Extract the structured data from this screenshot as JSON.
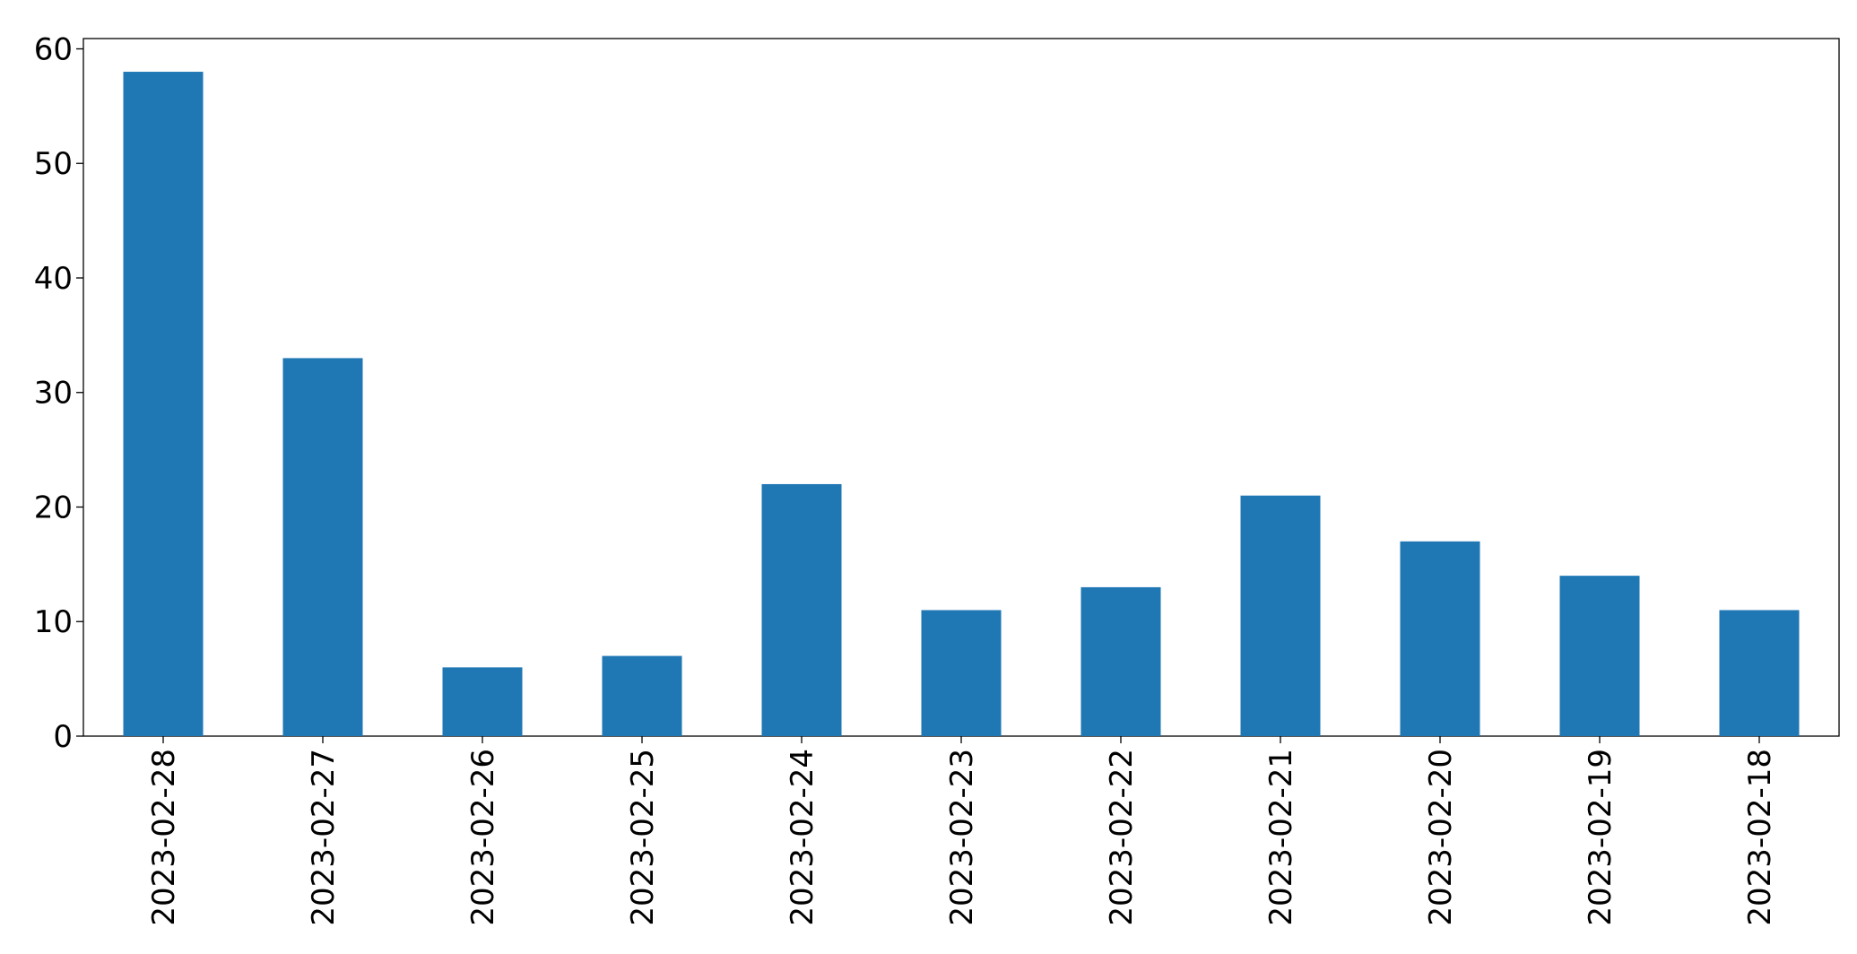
{
  "chart_data": {
    "type": "bar",
    "categories": [
      "2023-02-28",
      "2023-02-27",
      "2023-02-26",
      "2023-02-25",
      "2023-02-24",
      "2023-02-23",
      "2023-02-22",
      "2023-02-21",
      "2023-02-20",
      "2023-02-19",
      "2023-02-18"
    ],
    "values": [
      58,
      33,
      6,
      7,
      22,
      11,
      13,
      21,
      17,
      14,
      11
    ],
    "color": "#1f77b4",
    "ylim": [
      0,
      60.9
    ],
    "yticks": [
      0,
      10,
      20,
      30,
      40,
      50,
      60
    ],
    "grid": false
  }
}
